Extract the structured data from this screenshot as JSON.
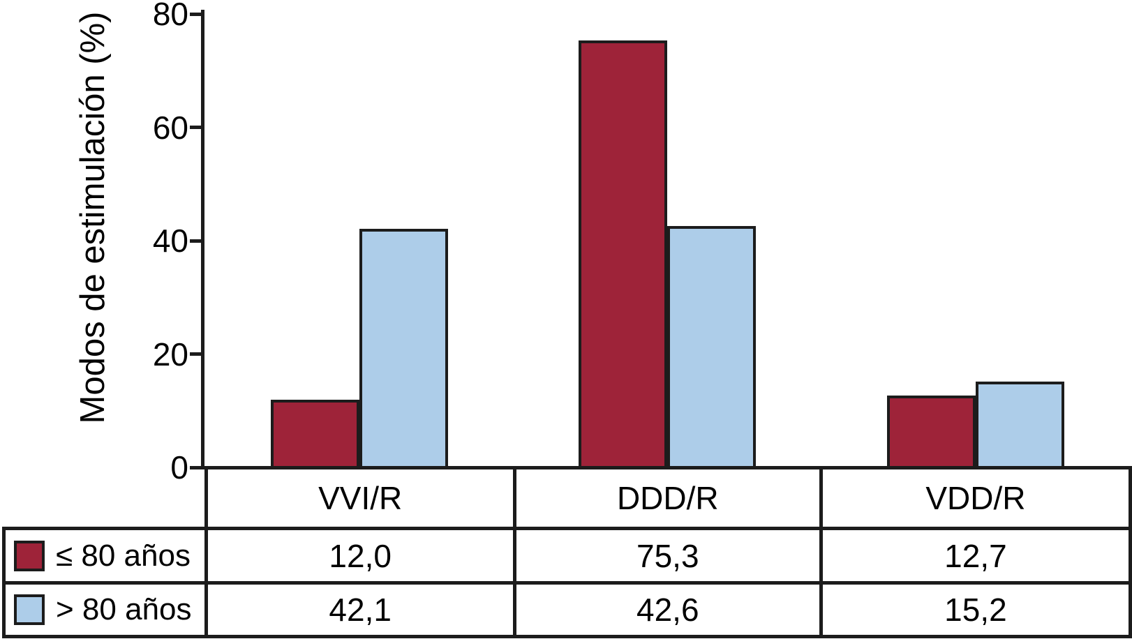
{
  "chart_data": {
    "type": "bar",
    "title": "",
    "xlabel": "",
    "ylabel": "Modos de estimulación (%)",
    "categories": [
      "VVI/R",
      "DDD/R",
      "VDD/R"
    ],
    "series": [
      {
        "name": "≤ 80 años",
        "color": "#9e2339",
        "values": [
          12.0,
          75.3,
          12.7
        ]
      },
      {
        "name": "> 80 años",
        "color": "#adcde9",
        "values": [
          42.1,
          42.6,
          15.2
        ]
      }
    ],
    "value_labels": [
      [
        "12,0",
        "75,3",
        "12,7"
      ],
      [
        "42,1",
        "42,6",
        "15,2"
      ]
    ],
    "yticks": [
      0,
      20,
      40,
      60,
      80
    ],
    "ytick_labels": [
      "0",
      "20",
      "40",
      "60",
      "80"
    ],
    "ylim": [
      0,
      80
    ],
    "grid": false,
    "legend_position": "bottom-left-table",
    "line_color": "#1c1c1c"
  }
}
